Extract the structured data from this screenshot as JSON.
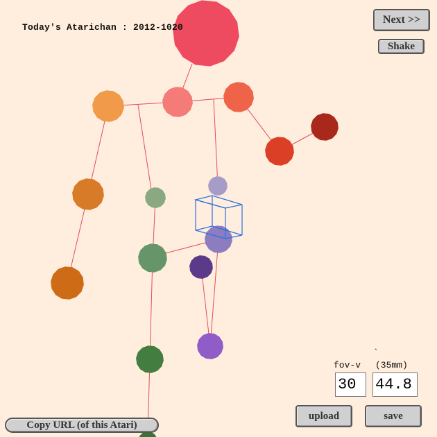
{
  "header": {
    "title": "Today's Atarichan : 2012-1020"
  },
  "controls": {
    "next_label": "Next >>",
    "shake_label": "Shake",
    "upload_label": "upload",
    "save_label": "save",
    "copy_url_label": "Copy URL (of this Atari)"
  },
  "camera": {
    "tick_mark": "`",
    "fov_label": "fov-v",
    "focal_label": "(35mm)",
    "fov_value": "30",
    "focal_value": "44.8"
  },
  "colors": {
    "background": "#ffeedd",
    "bone_line": "#e34a5e",
    "cube_line": "#2a6fe0"
  },
  "figure": {
    "joints": [
      {
        "name": "head",
        "color": "#ef4b60"
      },
      {
        "name": "neck",
        "color": "#f47b78"
      },
      {
        "name": "left-shoulder",
        "color": "#f09a4a"
      },
      {
        "name": "right-shoulder",
        "color": "#ef6449"
      },
      {
        "name": "right-elbow",
        "color": "#db3f26"
      },
      {
        "name": "right-hand",
        "color": "#a8281c"
      },
      {
        "name": "left-elbow",
        "color": "#d87b28"
      },
      {
        "name": "left-hand",
        "color": "#cd6b17"
      },
      {
        "name": "left-hip",
        "color": "#8aa982"
      },
      {
        "name": "left-knee",
        "color": "#66956a"
      },
      {
        "name": "left-foot",
        "color": "#437d3f"
      },
      {
        "name": "left-toe",
        "color": "#3a7336"
      },
      {
        "name": "right-hip",
        "color": "#a79cc7"
      },
      {
        "name": "right-knee",
        "color": "#8c7dc0"
      },
      {
        "name": "right-knee-back",
        "color": "#5b3a8a"
      },
      {
        "name": "right-foot",
        "color": "#8f5cc8"
      }
    ]
  }
}
